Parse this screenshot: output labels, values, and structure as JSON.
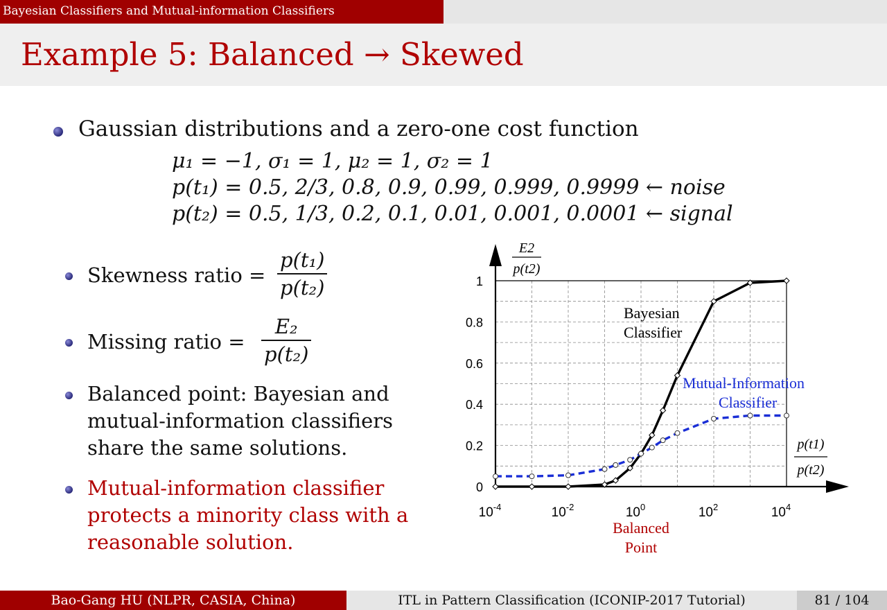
{
  "header": {
    "section": "Bayesian Classifiers and Mutual-information Classifiers",
    "title": "Example 5: Balanced → Skewed"
  },
  "body": {
    "bullet_main": "Gaussian distributions and a zero-one cost function",
    "eq_params": "μ₁ = −1,  σ₁ = 1,  μ₂ = 1,  σ₂ = 1",
    "eq_pt1": "p(t₁) = 0.5,  2/3,  0.8,  0.9,  0.99,  0.999,  0.9999  ← noise",
    "eq_pt2": "p(t₂) = 0.5,  1/3,  0.2,  0.1,  0.01,  0.001,  0.0001  ← signal",
    "skewness_label": "Skewness ratio =",
    "skewness_num": "p(t₁)",
    "skewness_den": "p(t₂)",
    "missing_label": "Missing ratio =",
    "missing_num": "E₂",
    "missing_den": "p(t₂)",
    "balanced_lines": [
      "Balanced point: Bayesian and",
      "mutual-information classifiers",
      "share the same solutions."
    ],
    "mi_lines": [
      "Mutual-information classifier",
      "protects a minority class with a",
      "reasonable solution."
    ]
  },
  "footer": {
    "author": "Bao-Gang HU (NLPR, CASIA, China)",
    "talk": "ITL in Pattern Classification (ICONIP-2017 Tutorial)",
    "page": "81 / 104"
  },
  "chart_data": {
    "type": "line",
    "x_scale": "log",
    "xlim": [
      0.0001,
      10000
    ],
    "ylim": [
      0,
      1
    ],
    "x_ticks": [
      "10^-4",
      "10^-2",
      "10^0",
      "10^2",
      "10^4"
    ],
    "y_ticks": [
      "0",
      "0.2",
      "0.4",
      "0.6",
      "0.8",
      "1"
    ],
    "ylabel_num": "E2",
    "ylabel_den": "p(t2)",
    "xlabel_num": "p(t1)",
    "xlabel_den": "p(t2)",
    "annotation": [
      "Balanced",
      "Point"
    ],
    "grid": true,
    "series": [
      {
        "name": "Bayesian Classifier",
        "name_lines": [
          "Bayesian",
          "Classifier"
        ],
        "color": "#000000",
        "x": [
          0.0001,
          0.001,
          0.01,
          0.1,
          0.2,
          0.5,
          1,
          2,
          4,
          10,
          100,
          1000,
          10000
        ],
        "y": [
          0.0,
          0.0,
          0.0,
          0.01,
          0.03,
          0.09,
          0.16,
          0.25,
          0.37,
          0.54,
          0.9,
          0.99,
          1.0
        ]
      },
      {
        "name": "Mutual-Information Classifier",
        "name_lines": [
          "Mutual-Information",
          "Classifier"
        ],
        "color": "#1a2ed6",
        "x": [
          0.0001,
          0.001,
          0.01,
          0.1,
          0.2,
          0.5,
          1,
          2,
          4,
          10,
          100,
          1000,
          10000
        ],
        "y": [
          0.05,
          0.05,
          0.055,
          0.085,
          0.105,
          0.13,
          0.16,
          0.19,
          0.225,
          0.26,
          0.33,
          0.345,
          0.345
        ]
      }
    ]
  }
}
